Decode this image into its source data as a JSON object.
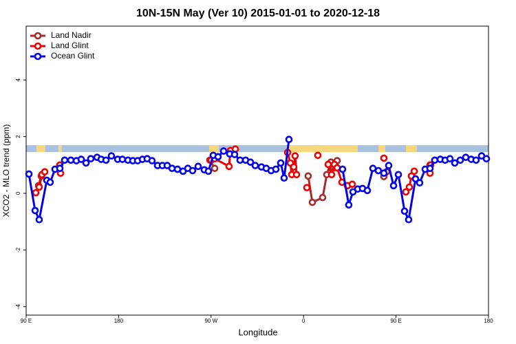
{
  "chart_data": {
    "type": "line",
    "title": "10N-15N May (Ver 10)   2015-01-01 to 2020-12-18",
    "xlabel": "Longitude",
    "ylabel": "XCO2 - MLO trend (ppm)",
    "xlim": [
      90,
      540
    ],
    "ylim": [
      -4.3,
      5.9
    ],
    "xticks": [
      {
        "value": 90,
        "label": "90 E"
      },
      180,
      {
        "value": 270,
        "label": "90 W"
      },
      {
        "value": 360,
        "label": "0"
      },
      {
        "value": 450,
        "label": "90 E"
      },
      {
        "value": 540,
        "label": "180"
      }
    ],
    "yticks": [
      -4,
      -2,
      0,
      2,
      4
    ],
    "legend": "upper left",
    "series": [
      {
        "name": "Land Nadir",
        "color": "#a52a2a",
        "x": [
          102.1,
          104.7,
          null,
          268.8,
          273.5,
          null,
          364.5,
          368.6,
          378.6,
          382.6,
          386.6,
          389.3,
          392.7,
          null,
          438.2,
          440.9,
          null,
          483.1
        ],
        "values": [
          0.27,
          0.61,
          null,
          1.17,
          0.88,
          null,
          0.61,
          -0.32,
          -0.15,
          0.66,
          1.1,
          0.9,
          1.15,
          null,
          0.59,
          0.76,
          null,
          1.0
        ]
      },
      {
        "name": "Land Glint",
        "color": "#ee0000",
        "x": [
          99.4,
          102.7,
          105.4,
          108.1,
          null,
          122.8,
          123.5,
          null,
          270.1,
          273.5,
          287.5,
          288.9,
          293.6,
          null,
          344.5,
          347.1,
          348.5,
          350.5,
          351.8,
          353.2,
          null,
          363.2,
          null,
          373.9,
          null,
          384.0,
          387.3,
          390.0,
          392.7,
          397.4,
          402.7,
          407.4,
          null,
          438.2,
          null,
          459.6,
          463.0,
          465.0,
          467.7,
          null,
          483.1,
          483.7
        ],
        "values": [
          0.02,
          0.22,
          0.66,
          0.76,
          null,
          1.0,
          0.71,
          null,
          1.17,
          1.22,
          0.95,
          1.51,
          1.56,
          null,
          1.44,
          1.07,
          0.66,
          0.93,
          1.32,
          0.66,
          null,
          0.2,
          null,
          1.34,
          null,
          1.02,
          0.66,
          1.02,
          0.9,
          0.39,
          0.27,
          0.32,
          null,
          1.24,
          null,
          0.05,
          0.22,
          0.61,
          0.78,
          null,
          0.71,
          1.0
        ]
      },
      {
        "name": "Ocean Glint",
        "color": "#0000ee",
        "x": [
          92.7,
          98.7,
          102.7,
          110.1,
          113.4,
          118.1,
          122.8,
          127.5,
          133.5,
          138.9,
          143.6,
          148.3,
          152.9,
          159.0,
          163.0,
          167.7,
          173.0,
          179.1,
          183.7,
          189.1,
          193.8,
          198.5,
          203.2,
          207.8,
          212.5,
          217.9,
          222.6,
          227.3,
          232.0,
          237.3,
          242.7,
          247.4,
          252.0,
          257.4,
          263.4,
          267.4,
          272.1,
          276.8,
          282.2,
          288.2,
          292.9,
          298.2,
          303.6,
          308.3,
          313.0,
          319.0,
          323.7,
          328.4,
          333.1,
          337.8,
          341.1,
          345.8,
          null,
          398.0,
          404.0,
          408.1,
          412.7,
          417.4,
          422.1,
          427.5,
          432.8,
          438.2,
          442.9,
          447.6,
          452.3,
          458.3,
          462.3,
          469.0,
          473.0,
          478.4,
          483.1,
          487.7,
          493.1,
          497.8,
          502.5,
          507.2,
          512.5,
          517.9,
          523.2,
          527.9,
          533.3,
          538.0
        ],
        "values": [
          0.68,
          -0.61,
          -0.93,
          0.46,
          0.39,
          0.85,
          0.88,
          1.17,
          1.17,
          1.15,
          1.2,
          1.07,
          1.22,
          1.27,
          1.2,
          1.17,
          1.32,
          1.2,
          1.2,
          1.17,
          1.15,
          1.15,
          1.2,
          1.22,
          1.15,
          0.98,
          0.98,
          0.98,
          0.88,
          0.85,
          0.78,
          0.88,
          0.8,
          0.95,
          0.83,
          0.78,
          1.34,
          1.29,
          1.49,
          1.39,
          1.37,
          1.17,
          1.17,
          1.1,
          0.98,
          0.93,
          0.88,
          0.8,
          0.85,
          1.07,
          0.54,
          1.9,
          null,
          0.85,
          -0.41,
          0.05,
          0.15,
          0.17,
          0.1,
          0.88,
          0.8,
          0.71,
          0.98,
          0.27,
          0.66,
          -0.63,
          -0.93,
          0.51,
          0.37,
          0.85,
          0.88,
          1.17,
          1.2,
          1.17,
          1.22,
          1.07,
          1.17,
          1.27,
          1.2,
          1.17,
          1.32,
          1.22
        ]
      }
    ]
  }
}
